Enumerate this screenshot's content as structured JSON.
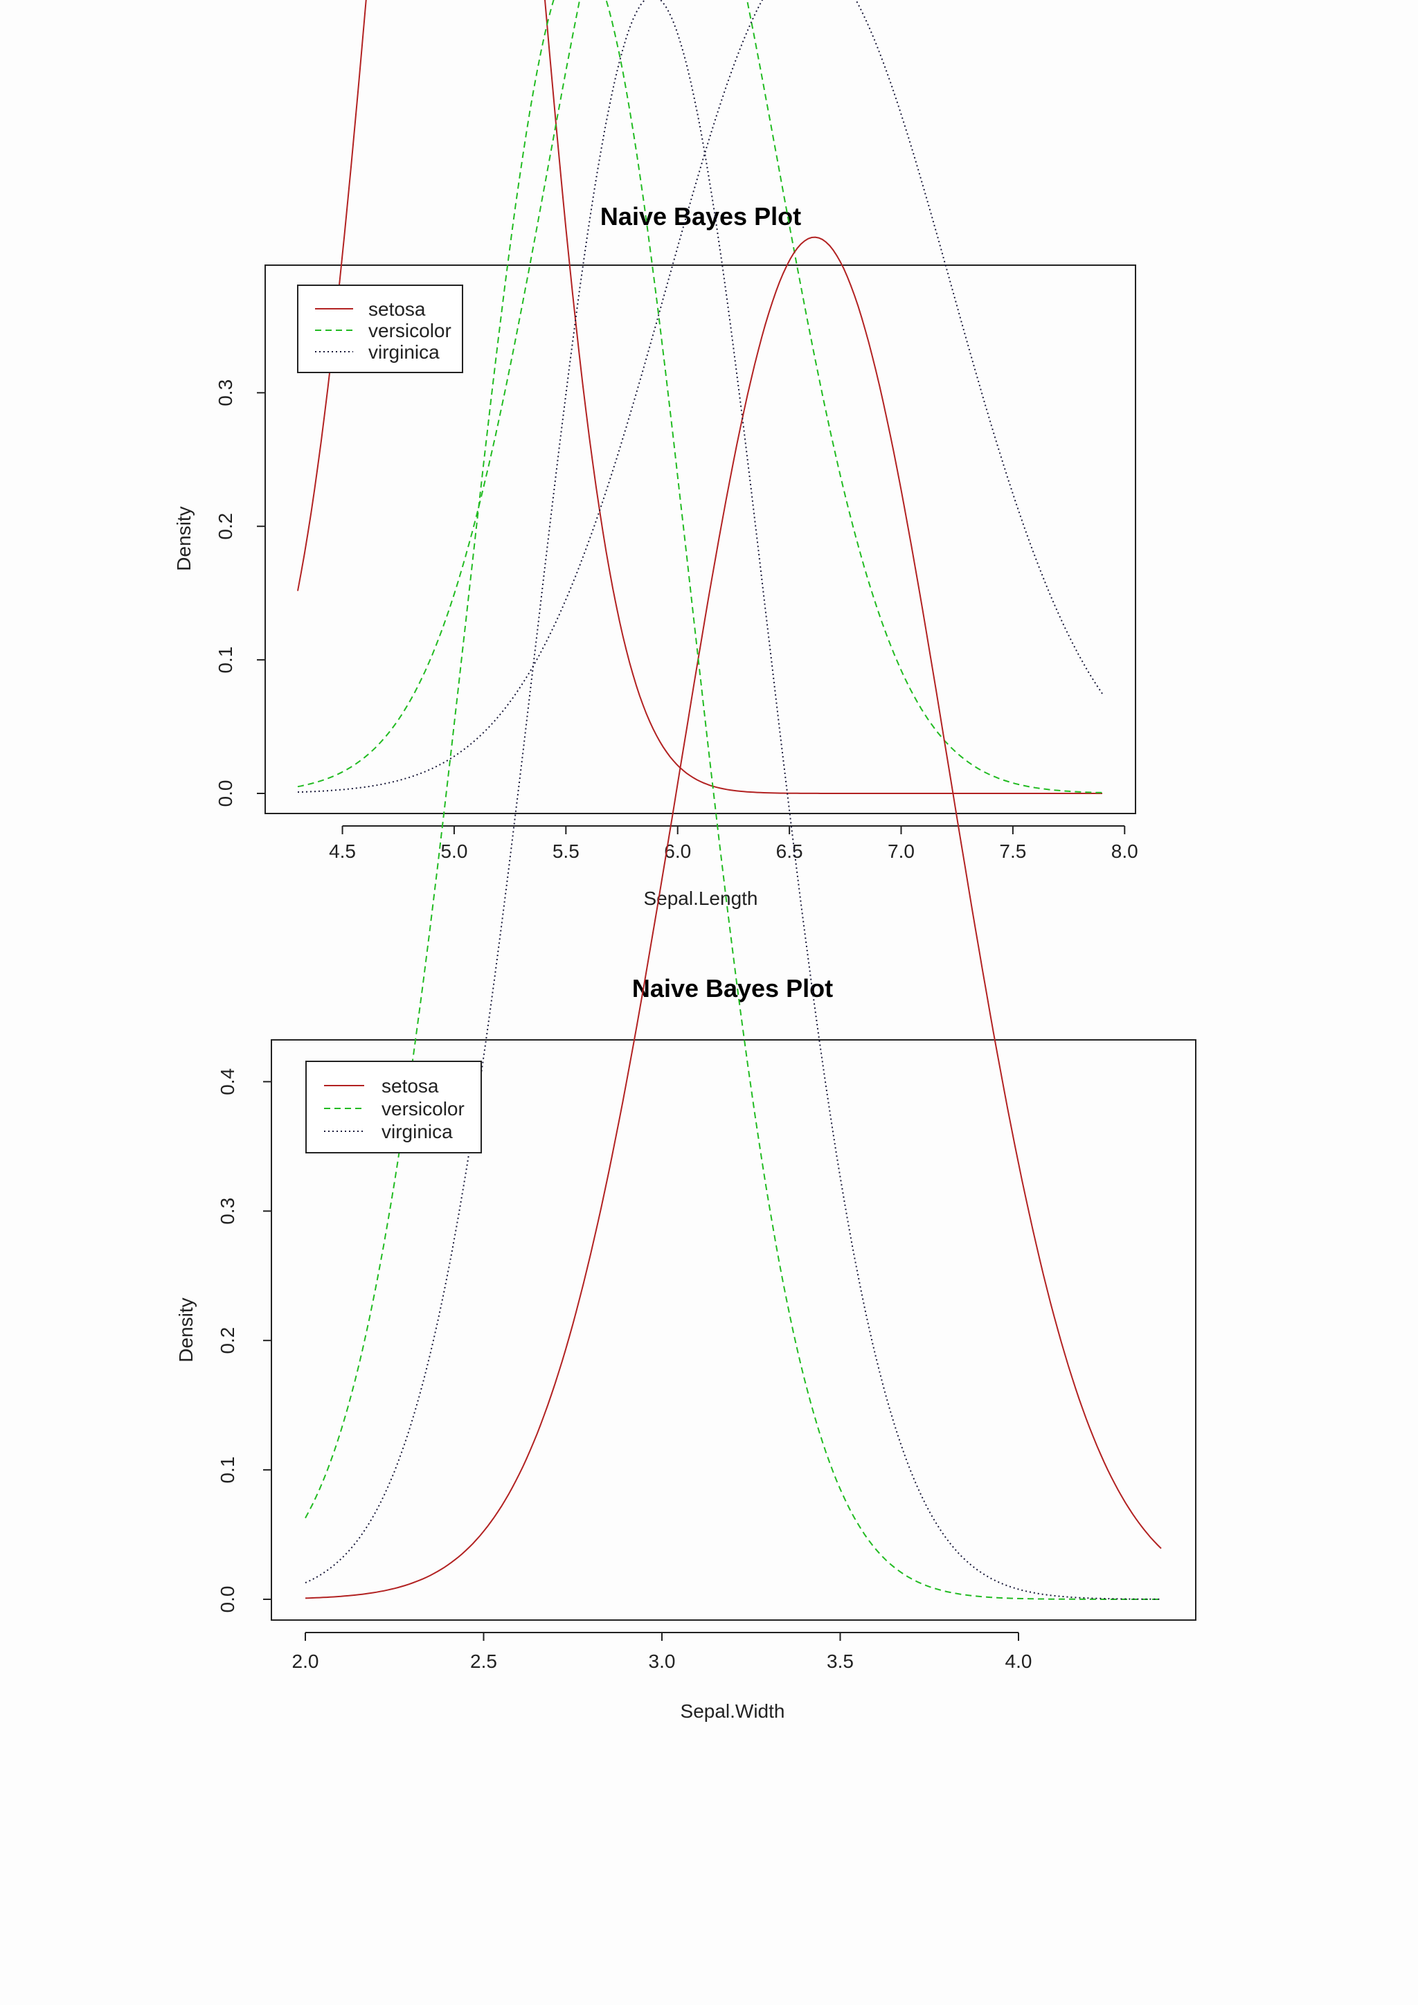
{
  "chart_data": [
    {
      "type": "line",
      "title": "Naive Bayes Plot",
      "xlabel": "Sepal.Length",
      "ylabel": "Density",
      "xlim": [
        4.3,
        7.9
      ],
      "ylim": [
        0,
        0.38
      ],
      "xticks": [
        "4.5",
        "5.0",
        "5.5",
        "6.0",
        "6.5",
        "7.0",
        "7.5",
        "8.0"
      ],
      "yticks": [
        "0.0",
        "0.1",
        "0.2",
        "0.3"
      ],
      "legend": "top-left",
      "series": [
        {
          "name": "setosa",
          "color": "#b22222",
          "dash": "solid",
          "mean": 5.006,
          "sd": 0.352
        },
        {
          "name": "versicolor",
          "color": "#22bb22",
          "dash": "dashed",
          "mean": 5.936,
          "sd": 0.516
        },
        {
          "name": "virginica",
          "color": "#1a1a3a",
          "dash": "dotted",
          "mean": 6.588,
          "sd": 0.636
        }
      ]
    },
    {
      "type": "line",
      "title": "Naive Bayes Plot",
      "xlabel": "Sepal.Width",
      "ylabel": "Density",
      "xlim": [
        2.0,
        4.4
      ],
      "ylim": [
        0,
        0.42
      ],
      "xticks": [
        "2.0",
        "2.5",
        "3.0",
        "3.5",
        "4.0"
      ],
      "yticks": [
        "0.0",
        "0.1",
        "0.2",
        "0.3",
        "0.4"
      ],
      "legend": "top-left",
      "series": [
        {
          "name": "setosa",
          "color": "#b22222",
          "dash": "solid",
          "mean": 3.428,
          "sd": 0.379
        },
        {
          "name": "versicolor",
          "color": "#22bb22",
          "dash": "dashed",
          "mean": 2.77,
          "sd": 0.314
        },
        {
          "name": "virginica",
          "color": "#1a1a3a",
          "dash": "dotted",
          "mean": 2.974,
          "sd": 0.322
        }
      ]
    }
  ]
}
